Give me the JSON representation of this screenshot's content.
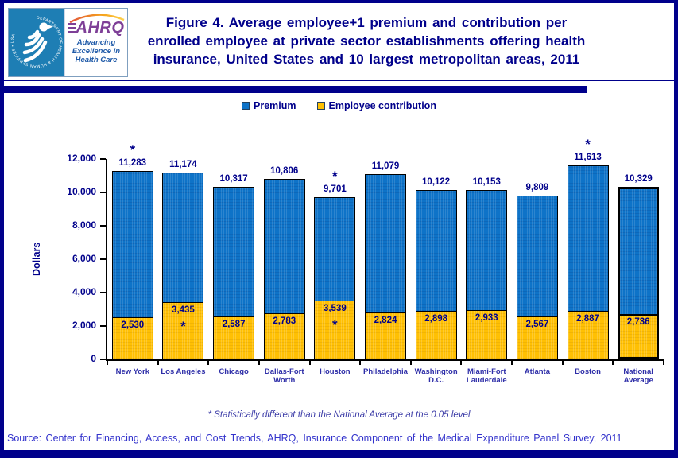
{
  "header": {
    "title_lines": [
      "Figure 4. Average employee+1 premium and contribution per",
      "enrolled employee at private sector establishments offering health",
      "insurance, United States and 10 largest metropolitan areas, 2011"
    ],
    "logo": {
      "hhs_ring_text": "DEPARTMENT OF HEALTH & HUMAN SERVICES • USA",
      "ahrq_acronym": "AHRQ",
      "ahrq_tagline_lines": [
        "Advancing",
        "Excellence in",
        "Health Care"
      ]
    }
  },
  "legend": [
    {
      "label": "Premium",
      "color": "#0E73C8"
    },
    {
      "label": "Employee contribution",
      "color": "#FFC003"
    }
  ],
  "chart_data": {
    "type": "bar",
    "title": "Average employee+1 premium and contribution per enrolled employee, 2011",
    "categories": [
      "New York",
      "Los Angeles",
      "Chicago",
      "Dallas-Fort Worth",
      "Houston",
      "Philadelphia",
      "Washington D.C.",
      "Miami-Fort Lauderdale",
      "Atlanta",
      "Boston",
      "National Average"
    ],
    "category_tick_labels": [
      "New York",
      "Los Angeles",
      "Chicago",
      "Dallas-Fort\nWorth",
      "Houston",
      "Philadelphia",
      "Washington\nD.C.",
      "Miami-Fort\nLauderdale",
      "Atlanta",
      "Boston",
      "National\nAverage"
    ],
    "series": [
      {
        "name": "Premium",
        "color": "#0E73C8",
        "values": [
          11283,
          11174,
          10317,
          10806,
          9701,
          11079,
          10122,
          10153,
          9809,
          11613,
          10329
        ],
        "value_labels": [
          "11,283",
          "11,174",
          "10,317",
          "10,806",
          "9,701",
          "11,079",
          "10,122",
          "10,153",
          "9,809",
          "11,613",
          "10,329"
        ],
        "starred": [
          true,
          false,
          false,
          false,
          true,
          false,
          false,
          false,
          false,
          true,
          false
        ]
      },
      {
        "name": "Employee contribution",
        "color": "#FFC003",
        "values": [
          2530,
          3435,
          2587,
          2783,
          3539,
          2824,
          2898,
          2933,
          2567,
          2887,
          2736
        ],
        "value_labels": [
          "2,530",
          "3,435",
          "2,587",
          "2,783",
          "3,539",
          "2,824",
          "2,898",
          "2,933",
          "2,567",
          "2,887",
          "2,736"
        ],
        "starred": [
          false,
          true,
          false,
          false,
          true,
          false,
          false,
          false,
          false,
          false,
          false
        ]
      }
    ],
    "ylabel": "Dollars",
    "xlabel": "",
    "ylim": [
      0,
      12000
    ],
    "ytick_labels": [
      "0",
      "2,000",
      "4,000",
      "6,000",
      "8,000",
      "10,000",
      "12,000"
    ],
    "grid": false,
    "legend_position": "top",
    "emphasized_category_index": 10,
    "star_marker": "*"
  },
  "footnote": "* Statistically different than the National Average at the 0.05 level",
  "source": "Source: Center for Financing, Access, and Cost Trends, AHRQ, Insurance Component of the Medical Expenditure Panel Survey, 2011"
}
